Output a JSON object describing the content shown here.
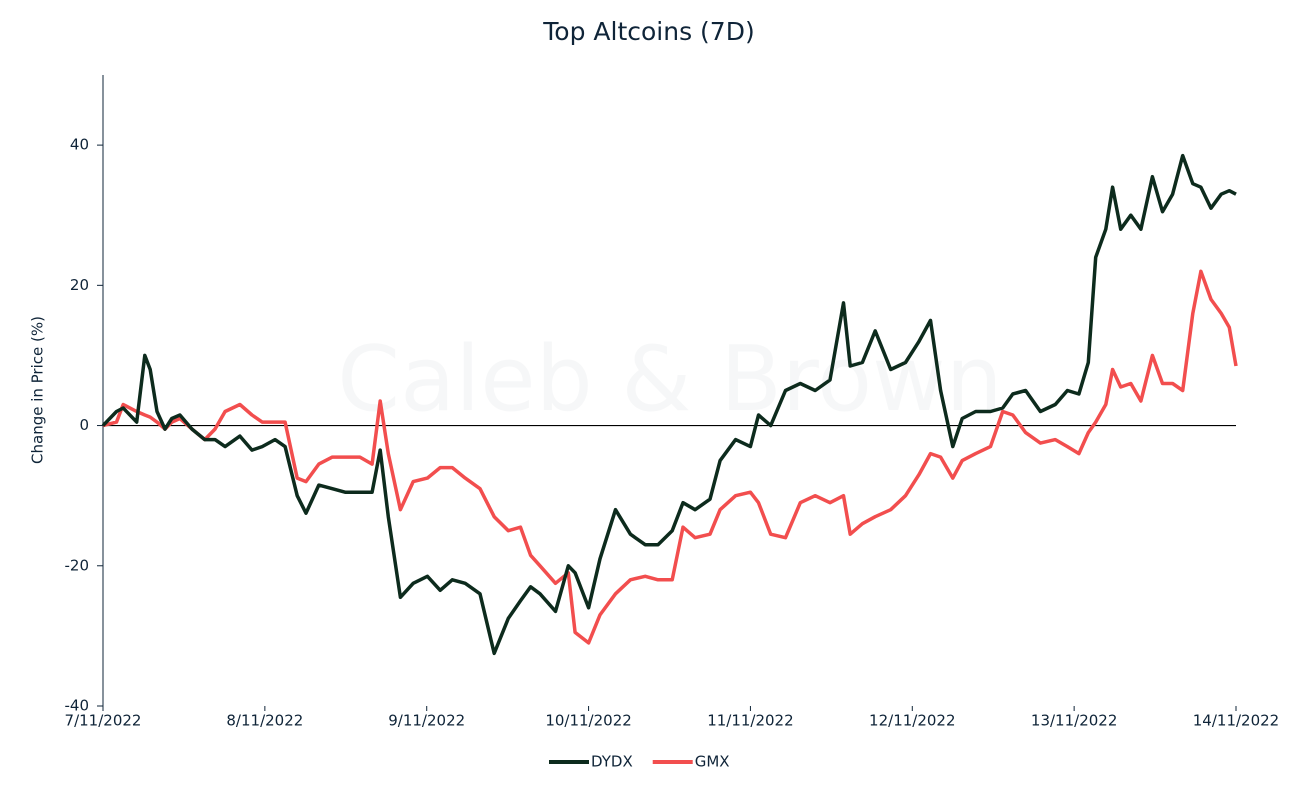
{
  "chart_data": {
    "type": "line",
    "title": "Top Altcoins (7D)",
    "ylabel": "Change in Price (%)",
    "watermark": "Caleb & Brown",
    "x": [
      0,
      2,
      3,
      5,
      6.2,
      7,
      8,
      9.2,
      10.2,
      11.4,
      13.2,
      15.1,
      16.6,
      18.1,
      20.3,
      22.1,
      23.6,
      25.5,
      27,
      28.8,
      30.1,
      32,
      34,
      35.9,
      38.1,
      39.9,
      41.1,
      42.3,
      44.1,
      46,
      48.1,
      50,
      51.8,
      53.7,
      55.9,
      58,
      60.1,
      61.9,
      63.4,
      64.8,
      67.1,
      69,
      70,
      72,
      73.7,
      76,
      78.2,
      80.4,
      82.3,
      84.4,
      86,
      87.8,
      90,
      91.5,
      93.8,
      96,
      97.2,
      99,
      101.2,
      103.4,
      105.6,
      107.8,
      109.8,
      110.8,
      112.6,
      114.5,
      116.8,
      119,
      121,
      122.7,
      124.2,
      126,
      127.4,
      129.4,
      131.6,
      133.4,
      134.9,
      136.8,
      139,
      141.2,
      143,
      144.7,
      146.1,
      147.2,
      148.7,
      149.7,
      150.9,
      152.4,
      153.9,
      155.6,
      157.1,
      158.6,
      160.1,
      161.6,
      162.8,
      164.3,
      165.8,
      167,
      168
    ],
    "series": [
      {
        "name": "DYDX",
        "color": "#0d2b1d",
        "values": [
          0,
          2,
          2.5,
          0.5,
          10,
          8,
          2,
          -0.5,
          1,
          1.5,
          -0.5,
          -2,
          -2,
          -3,
          -1.5,
          -3.5,
          -3,
          -2,
          -3,
          -10,
          -12.5,
          -8.5,
          -9,
          -9.5,
          -9.5,
          -9.5,
          -3.5,
          -13,
          -24.5,
          -22.5,
          -21.5,
          -23.5,
          -22,
          -22.5,
          -24,
          -32.5,
          -27.5,
          -25,
          -23,
          -24,
          -26.5,
          -20,
          -21,
          -26,
          -19,
          -12,
          -15.5,
          -17,
          -17,
          -15,
          -11,
          -12,
          -10.5,
          -5,
          -2,
          -3,
          1.5,
          0,
          5,
          6,
          5,
          6.5,
          17.5,
          8.5,
          9,
          13.5,
          8,
          9,
          12,
          15,
          5,
          -3,
          1,
          2,
          2,
          2.5,
          4.5,
          5,
          2,
          3,
          5,
          4.5,
          9,
          24,
          28,
          34,
          28,
          30,
          28,
          35.5,
          30.5,
          33,
          38.5,
          34.5,
          34,
          31,
          33,
          33.5,
          33
        ]
      },
      {
        "name": "GMX",
        "color": "#f24e4e",
        "values": [
          0,
          0.5,
          3,
          2,
          1.5,
          1.2,
          0.5,
          -0.5,
          0.5,
          1,
          -0.5,
          -2,
          -0.5,
          2,
          3,
          1.5,
          0.5,
          0.5,
          0.5,
          -7.5,
          -8,
          -5.5,
          -4.5,
          -4.5,
          -4.5,
          -5.5,
          3.5,
          -4,
          -12,
          -8,
          -7.5,
          -6,
          -6,
          -7.5,
          -9,
          -13,
          -15,
          -14.5,
          -18.5,
          -20,
          -22.5,
          -21,
          -29.5,
          -31,
          -27,
          -24,
          -22,
          -21.5,
          -22,
          -22,
          -14.5,
          -16,
          -15.5,
          -12,
          -10,
          -9.5,
          -11,
          -15.5,
          -16,
          -11,
          -10,
          -11,
          -10,
          -15.5,
          -14,
          -13,
          -12,
          -10,
          -7,
          -4,
          -4.5,
          -7.5,
          -5,
          -4,
          -3,
          2,
          1.5,
          -1,
          -2.5,
          -2,
          -3,
          -4,
          -1,
          0.5,
          3,
          8,
          5.5,
          6,
          3.5,
          10,
          6,
          6,
          5,
          16,
          22,
          18,
          16,
          14,
          8.5
        ]
      }
    ],
    "xlim": [
      0,
      168
    ],
    "xticks": [
      {
        "value": 0,
        "label": "7/11/2022"
      },
      {
        "value": 24,
        "label": "8/11/2022"
      },
      {
        "value": 48,
        "label": "9/11/2022"
      },
      {
        "value": 72,
        "label": "10/11/2022"
      },
      {
        "value": 96,
        "label": "11/11/2022"
      },
      {
        "value": 120,
        "label": "12/11/2022"
      },
      {
        "value": 144,
        "label": "13/11/2022"
      },
      {
        "value": 168,
        "label": "14/11/2022"
      }
    ],
    "ylim": [
      -40,
      50
    ],
    "yticks": [
      -40,
      -20,
      0,
      20,
      40
    ],
    "zero_line": true,
    "legend": "bottom"
  }
}
